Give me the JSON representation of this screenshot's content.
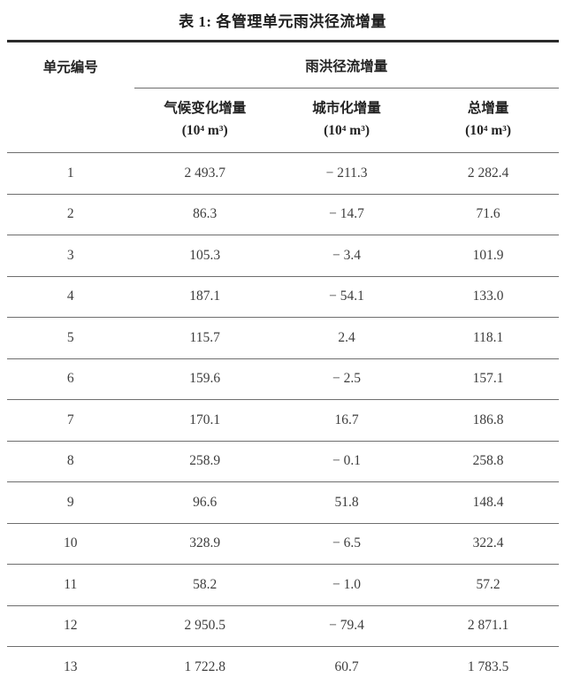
{
  "page": {
    "title": "表 1: 各管理单元雨洪径流增量"
  },
  "table": {
    "header": {
      "unit_col": "单元编号",
      "span_col": "雨洪径流增量",
      "sub_cols": [
        {
          "label": "气候变化增量",
          "unit": "(10⁴ m³)"
        },
        {
          "label": "城市化增量",
          "unit": "(10⁴ m³)"
        },
        {
          "label": "总增量",
          "unit": "(10⁴ m³)"
        }
      ]
    },
    "rows": [
      [
        "1",
        "2 493.7",
        "− 211.3",
        "2 282.4"
      ],
      [
        "2",
        "86.3",
        "− 14.7",
        "71.6"
      ],
      [
        "3",
        "105.3",
        "− 3.4",
        "101.9"
      ],
      [
        "4",
        "187.1",
        "− 54.1",
        "133.0"
      ],
      [
        "5",
        "115.7",
        "2.4",
        "118.1"
      ],
      [
        "6",
        "159.6",
        "− 2.5",
        "157.1"
      ],
      [
        "7",
        "170.1",
        "16.7",
        "186.8"
      ],
      [
        "8",
        "258.9",
        "− 0.1",
        "258.8"
      ],
      [
        "9",
        "96.6",
        "51.8",
        "148.4"
      ],
      [
        "10",
        "328.9",
        "− 6.5",
        "322.4"
      ],
      [
        "11",
        "58.2",
        "− 1.0",
        "57.2"
      ],
      [
        "12",
        "2 950.5",
        "− 79.4",
        "2 871.1"
      ],
      [
        "13",
        "1 722.8",
        "60.7",
        "1 783.5"
      ]
    ]
  }
}
